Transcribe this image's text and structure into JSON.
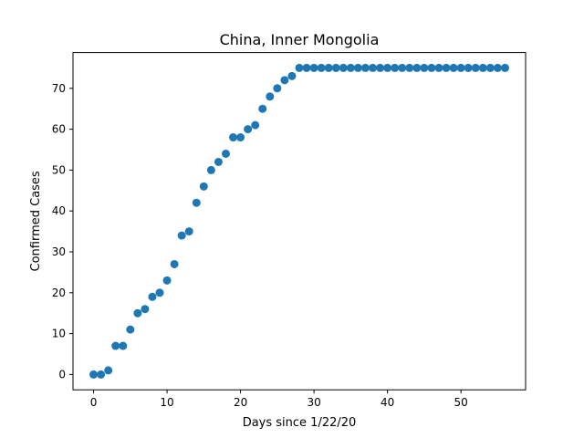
{
  "chart_data": {
    "type": "scatter",
    "title": "China, Inner Mongolia",
    "xlabel": "Days since 1/22/20",
    "ylabel": "Confirmed Cases",
    "xlim": [
      -2.8,
      58.8
    ],
    "ylim": [
      -3.75,
      78.75
    ],
    "xticks": [
      0,
      10,
      20,
      30,
      40,
      50
    ],
    "yticks": [
      0,
      10,
      20,
      30,
      40,
      50,
      60,
      70
    ],
    "grid": false,
    "marker_color": "#1f77b4",
    "series": [
      {
        "x": [
          0,
          1,
          2,
          3,
          4,
          5,
          6,
          7,
          8,
          9,
          10,
          11,
          12,
          13,
          14,
          15,
          16,
          17,
          18,
          19,
          20,
          21,
          22,
          23,
          24,
          25,
          26,
          27,
          28,
          29,
          30,
          31,
          32,
          33,
          34,
          35,
          36,
          37,
          38,
          39,
          40,
          41,
          42,
          43,
          44,
          45,
          46,
          47,
          48,
          49,
          50,
          51,
          52,
          53,
          54,
          55,
          56
        ],
        "y": [
          0,
          0,
          1,
          7,
          7,
          11,
          15,
          16,
          19,
          20,
          23,
          27,
          34,
          35,
          42,
          46,
          50,
          52,
          54,
          58,
          58,
          60,
          61,
          65,
          68,
          70,
          72,
          73,
          75,
          75,
          75,
          75,
          75,
          75,
          75,
          75,
          75,
          75,
          75,
          75,
          75,
          75,
          75,
          75,
          75,
          75,
          75,
          75,
          75,
          75,
          75,
          75,
          75,
          75,
          75,
          75,
          75
        ]
      }
    ]
  }
}
